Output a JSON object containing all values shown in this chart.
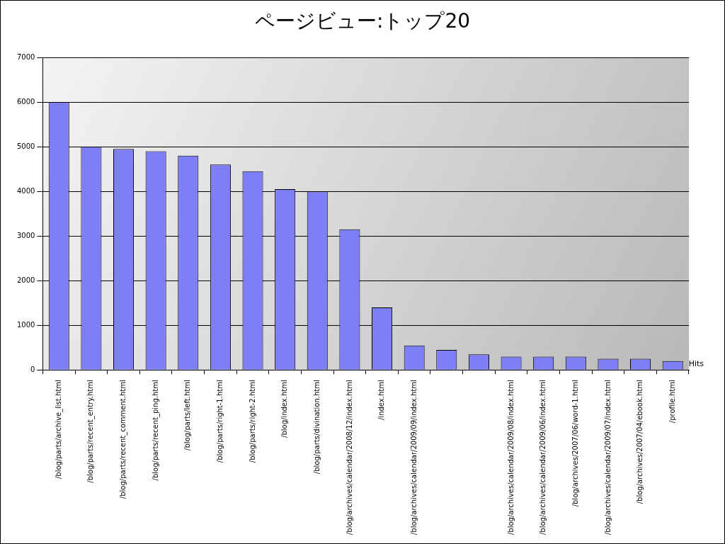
{
  "chart_data": {
    "type": "bar",
    "title": "ページビュー:トップ20",
    "categories": [
      "/blog/parts/archive_list.html",
      "/blog/parts/recent_entry.html",
      "/blog/parts/recent_comment.html",
      "/blog/parts/recent_ping.html",
      "/blog/parts/left.html",
      "/blog/parts/right-1.html",
      "/blog/parts/right-2.html",
      "/blog/index.html",
      "/blog/parts/divination.html",
      "/blog/archives/calendar/2008/12/index.html",
      "/index.html",
      "/blog/archives/calendar/2009/09/index.html",
      null,
      null,
      "/blog/archives/calendar/2009/08/index.html",
      "/blog/archives/calendar/2009/06/index.html",
      "/blog/archives/2007/06/word-1.html",
      "/blog/archives/calendar/2009/07/index.html",
      "/blog/archives/2007/04/ebook.html",
      "/profile.html"
    ],
    "series": [
      {
        "name": "Hits",
        "color": "#7f7ff5",
        "values": [
          6000,
          5000,
          4950,
          4900,
          4800,
          4600,
          4450,
          4050,
          4000,
          3150,
          1400,
          550,
          450,
          350,
          300,
          300,
          300,
          250,
          250,
          200
        ]
      }
    ],
    "ylim": [
      0,
      7000
    ],
    "yticks": [
      0,
      1000,
      2000,
      3000,
      4000,
      5000,
      6000,
      7000
    ],
    "grid": "y"
  }
}
